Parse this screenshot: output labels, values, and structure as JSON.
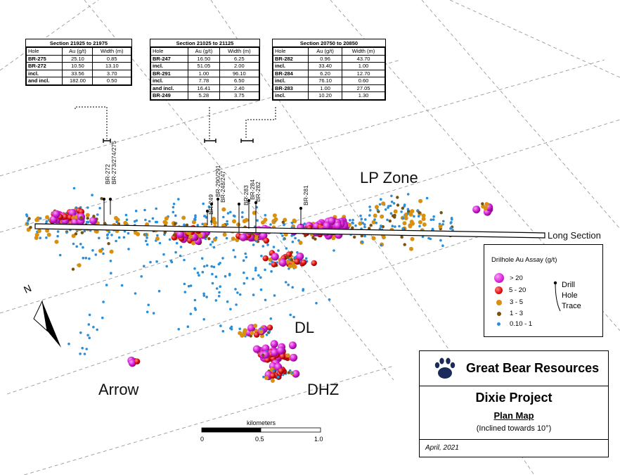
{
  "tables": [
    {
      "title": "Section 21925 to 21975",
      "headers": [
        "Hole",
        "Au (g/t)",
        "Width (m)"
      ],
      "rows": [
        [
          "BR-275",
          "25.10",
          "0.85"
        ],
        [
          "BR-272",
          "10.50",
          "13.10"
        ],
        [
          "incl.",
          "33.56",
          "3.70"
        ],
        [
          "and incl.",
          "182.00",
          "0.50"
        ]
      ]
    },
    {
      "title": "Section 21025 to 21125",
      "headers": [
        "Hole",
        "Au (g/t)",
        "Width (m)"
      ],
      "rows": [
        [
          "BR-247",
          "16.50",
          "6.25"
        ],
        [
          "incl.",
          "51.05",
          "2.00"
        ],
        [
          "BR-291",
          "1.00",
          "96.10"
        ],
        [
          "incl.",
          "7.78",
          "6.50"
        ],
        [
          "and incl.",
          "16.41",
          "2.40"
        ],
        [
          "BR-249",
          "5.28",
          "3.75"
        ]
      ]
    },
    {
      "title": "Section 20750 to 20850",
      "headers": [
        "Hole",
        "Au (g/t)",
        "Width (m)"
      ],
      "rows": [
        [
          "BR-282",
          "0.96",
          "43.70"
        ],
        [
          "incl.",
          "33.40",
          "1.00"
        ],
        [
          "BR-284",
          "6.20",
          "12.70"
        ],
        [
          "incl.",
          "76.10",
          "0.60"
        ],
        [
          "BR-283",
          "1.00",
          "27.05"
        ],
        [
          "incl.",
          "10.20",
          "1.30"
        ]
      ]
    }
  ],
  "zones": [
    "LP Zone",
    "DL",
    "DHZ",
    "Arrow"
  ],
  "long_section_label": "Long Section",
  "hole_labels": [
    "BR-272",
    "BR-273/274/275",
    "BR-249",
    "BR-290/291",
    "BR-248/247",
    "BR-283",
    "BR-284",
    "BR-282",
    "BR-281"
  ],
  "north_label": "N",
  "legend": {
    "title": "Drilhole Au Assay (g/t)",
    "items": [
      {
        "label": "> 20",
        "color": "#d81fd8",
        "icon": "magenta-dot"
      },
      {
        "label": "5 - 20",
        "color": "#e01010",
        "icon": "red-dot"
      },
      {
        "label": "3 - 5",
        "color": "#d89010",
        "icon": "orange-dot"
      },
      {
        "label": "1 - 3",
        "color": "#7a5010",
        "icon": "brown-dot"
      },
      {
        "label": "0.10 - 1",
        "color": "#2a8fd8",
        "icon": "blue-dot"
      }
    ],
    "trace_lines": [
      "Drill",
      "Hole",
      "Trace"
    ]
  },
  "title_block": {
    "company": "Great Bear Resources",
    "project": "Dixie Project",
    "map_type": "Plan Map",
    "inclination": "(Inclined towards 10°)",
    "date": "April, 2021",
    "logo_icon": "bear-paw-icon"
  },
  "scale_bar": {
    "unit": "kilometers",
    "ticks": [
      "0",
      "0.5",
      "1.0"
    ]
  }
}
